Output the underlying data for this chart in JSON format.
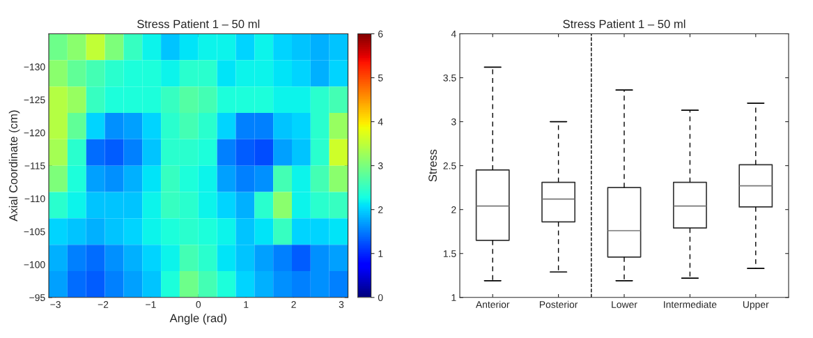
{
  "chart_data": [
    {
      "type": "heatmap",
      "title": "Stress Patient 1 – 50 ml",
      "xlabel": "Angle (rad)",
      "ylabel": "Axial Coordinate (cm)",
      "x": [
        -2.944,
        -2.551,
        -2.159,
        -1.766,
        -1.374,
        -0.981,
        -0.589,
        -0.196,
        0.196,
        0.589,
        0.981,
        1.374,
        1.766,
        2.159,
        2.551,
        2.944
      ],
      "y": [
        -133,
        -129,
        -125,
        -121,
        -117,
        -113,
        -109,
        -105,
        -101,
        -97
      ],
      "xlim": [
        -3.14,
        3.14
      ],
      "ylim": [
        -95,
        -135
      ],
      "xticks": [
        {
          "value": -3,
          "label": "−3"
        },
        {
          "value": -2,
          "label": "−2"
        },
        {
          "value": -1,
          "label": "−1"
        },
        {
          "value": 0,
          "label": "0"
        },
        {
          "value": 1,
          "label": "1"
        },
        {
          "value": 2,
          "label": "2"
        },
        {
          "value": 3,
          "label": "3"
        }
      ],
      "yticks": [
        {
          "value": -130,
          "label": "−130"
        },
        {
          "value": -125,
          "label": "−125"
        },
        {
          "value": -120,
          "label": "−120"
        },
        {
          "value": -115,
          "label": "−115"
        },
        {
          "value": -110,
          "label": "−110"
        },
        {
          "value": -105,
          "label": "−105"
        },
        {
          "value": -100,
          "label": "−100"
        },
        {
          "value": -95,
          "label": "−95"
        }
      ],
      "clim": [
        0,
        6
      ],
      "cticks": [
        0,
        1,
        2,
        3,
        4,
        5,
        6
      ],
      "cells": [
        [
          2.9,
          3.1,
          3.5,
          3.0,
          2.5,
          2.2,
          1.9,
          2.1,
          2.2,
          2.2,
          2.0,
          2.2,
          2.0,
          1.9,
          1.8,
          1.9
        ],
        [
          3.1,
          2.8,
          2.6,
          2.4,
          2.3,
          2.3,
          2.2,
          2.4,
          2.4,
          2.1,
          2.2,
          2.2,
          2.1,
          2.0,
          1.8,
          2.0
        ],
        [
          3.4,
          3.2,
          2.5,
          2.3,
          2.3,
          2.3,
          2.5,
          2.7,
          2.6,
          2.3,
          2.3,
          2.3,
          2.2,
          2.2,
          2.4,
          2.6
        ],
        [
          3.4,
          2.8,
          2.0,
          1.6,
          1.7,
          2.0,
          2.4,
          2.6,
          2.4,
          2.0,
          1.5,
          1.5,
          1.9,
          2.0,
          2.4,
          3.2
        ],
        [
          3.3,
          2.4,
          1.4,
          1.3,
          1.5,
          1.9,
          2.4,
          2.4,
          2.3,
          1.5,
          1.3,
          1.2,
          1.7,
          1.9,
          2.4,
          3.6
        ],
        [
          3.0,
          2.3,
          1.7,
          1.6,
          1.8,
          2.1,
          2.5,
          2.3,
          2.2,
          1.7,
          1.5,
          1.6,
          2.6,
          2.2,
          2.6,
          3.1
        ],
        [
          2.4,
          2.2,
          1.9,
          1.9,
          1.9,
          2.2,
          2.5,
          2.4,
          2.2,
          2.0,
          1.8,
          2.4,
          3.1,
          2.2,
          2.4,
          2.5
        ],
        [
          2.0,
          1.9,
          1.8,
          1.9,
          2.0,
          2.2,
          2.3,
          2.4,
          2.3,
          2.2,
          1.9,
          2.1,
          2.5,
          2.0,
          2.0,
          2.1
        ],
        [
          1.8,
          1.5,
          1.4,
          1.6,
          1.8,
          2.0,
          2.2,
          2.6,
          2.4,
          2.1,
          1.9,
          1.7,
          1.5,
          1.3,
          1.6,
          1.7
        ],
        [
          1.7,
          1.4,
          1.3,
          1.5,
          1.7,
          1.9,
          2.3,
          2.9,
          2.6,
          2.3,
          2.0,
          1.8,
          1.6,
          1.5,
          1.6,
          1.5
        ]
      ]
    },
    {
      "type": "box",
      "title": "Stress Patient 1 – 50 ml",
      "ylabel": "Stress",
      "categories": [
        "Anterior",
        "Posterior",
        "Lower",
        "Intermediate",
        "Upper"
      ],
      "ylim": [
        1,
        4
      ],
      "yticks": [
        1,
        1.5,
        2,
        2.5,
        3,
        3.5,
        4
      ],
      "boxes": [
        {
          "low": 1.19,
          "q1": 1.65,
          "median": 2.04,
          "q3": 2.45,
          "high": 3.62
        },
        {
          "low": 1.29,
          "q1": 1.86,
          "median": 2.12,
          "q3": 2.31,
          "high": 3.0
        },
        {
          "low": 1.19,
          "q1": 1.46,
          "median": 1.76,
          "q3": 2.25,
          "high": 3.36
        },
        {
          "low": 1.22,
          "q1": 1.79,
          "median": 2.04,
          "q3": 2.31,
          "high": 3.13
        },
        {
          "low": 1.33,
          "q1": 2.03,
          "median": 2.27,
          "q3": 2.51,
          "high": 3.21
        }
      ]
    }
  ]
}
